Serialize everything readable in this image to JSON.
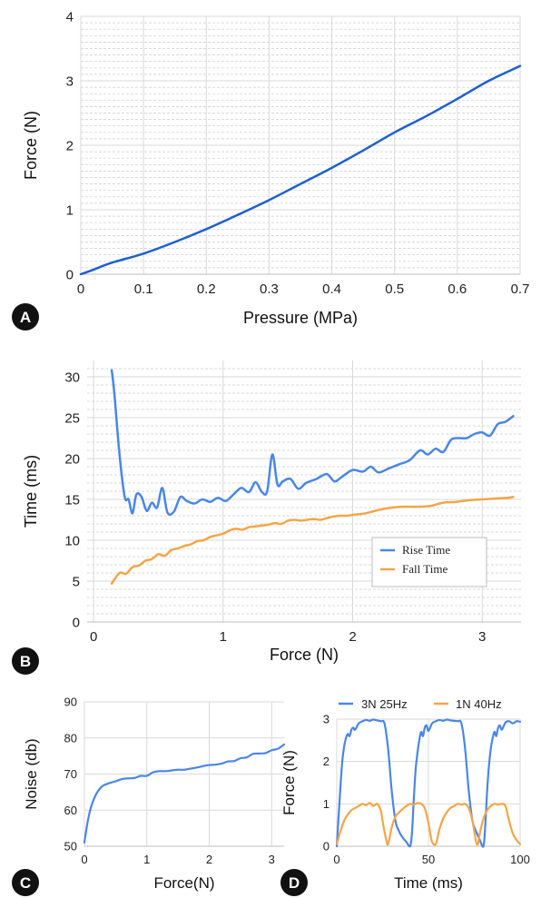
{
  "colors": {
    "panel_a_line": "#1f5fcf",
    "blue": "#4a86e8",
    "orange": "#f4a548",
    "grid_major": "#d9d9d9",
    "grid_minor": "#cccccc",
    "badge": "#111111"
  },
  "chart_data": [
    {
      "id": "A",
      "type": "line",
      "panel_label": "A",
      "xlabel": "Pressure (MPa)",
      "ylabel": "Force (N)",
      "xlim": [
        0,
        0.7
      ],
      "ylim": [
        0,
        4
      ],
      "x_ticks": [
        "0",
        "0.1",
        "0.2",
        "0.3",
        "0.4",
        "0.5",
        "0.6",
        "0.7"
      ],
      "y_ticks": [
        "0",
        "1",
        "2",
        "3",
        "4"
      ],
      "grid": true,
      "series": [
        {
          "x": [
            0,
            0.02,
            0.05,
            0.1,
            0.15,
            0.2,
            0.25,
            0.3,
            0.35,
            0.4,
            0.45,
            0.5,
            0.55,
            0.6,
            0.65,
            0.7
          ],
          "y": [
            0,
            0.07,
            0.18,
            0.32,
            0.5,
            0.7,
            0.92,
            1.15,
            1.4,
            1.65,
            1.92,
            2.2,
            2.45,
            2.72,
            3.0,
            3.23
          ]
        }
      ]
    },
    {
      "id": "B",
      "type": "line",
      "panel_label": "B",
      "xlabel": "Force (N)",
      "ylabel": "Time (ms)",
      "xlim": [
        -0.05,
        3.3
      ],
      "ylim": [
        0,
        32
      ],
      "x_ticks": [
        "0",
        "1",
        "2",
        "3"
      ],
      "y_ticks": [
        "0",
        "5",
        "10",
        "15",
        "20",
        "25",
        "30"
      ],
      "grid": true,
      "legend_position": "center-right",
      "series": [
        {
          "name": "Rise Time",
          "x": [
            0.14,
            0.16,
            0.2,
            0.24,
            0.27,
            0.3,
            0.33,
            0.37,
            0.41,
            0.45,
            0.49,
            0.53,
            0.57,
            0.62,
            0.67,
            0.72,
            0.78,
            0.84,
            0.9,
            0.96,
            1.02,
            1.08,
            1.14,
            1.2,
            1.25,
            1.3,
            1.34,
            1.38,
            1.42,
            1.46,
            1.52,
            1.58,
            1.64,
            1.72,
            1.8,
            1.86,
            1.92,
            2.0,
            2.08,
            2.14,
            2.2,
            2.28,
            2.36,
            2.44,
            2.52,
            2.58,
            2.64,
            2.7,
            2.76,
            2.82,
            2.88,
            2.94,
            3.0,
            3.06,
            3.12,
            3.18,
            3.24
          ],
          "y": [
            30.8,
            28.0,
            20.5,
            15.3,
            15.0,
            13.3,
            15.6,
            15.3,
            13.6,
            14.6,
            14.0,
            16.4,
            13.4,
            13.5,
            15.3,
            14.8,
            14.5,
            15.0,
            14.7,
            15.2,
            14.8,
            15.6,
            16.4,
            15.9,
            17.1,
            15.9,
            16.0,
            20.5,
            16.8,
            17.2,
            17.5,
            16.3,
            17.0,
            17.5,
            18.1,
            17.2,
            17.8,
            18.6,
            18.4,
            19.0,
            18.3,
            18.8,
            19.3,
            19.8,
            21.0,
            20.5,
            21.2,
            20.8,
            22.3,
            22.5,
            22.5,
            23.0,
            23.2,
            22.8,
            24.2,
            24.5,
            25.2
          ]
        },
        {
          "name": "Fall Time",
          "x": [
            0.14,
            0.2,
            0.25,
            0.3,
            0.35,
            0.4,
            0.45,
            0.5,
            0.55,
            0.6,
            0.65,
            0.7,
            0.75,
            0.8,
            0.85,
            0.9,
            0.95,
            1.0,
            1.05,
            1.1,
            1.15,
            1.2,
            1.25,
            1.3,
            1.35,
            1.4,
            1.45,
            1.5,
            1.55,
            1.6,
            1.65,
            1.7,
            1.75,
            1.8,
            1.85,
            1.9,
            1.95,
            2.0,
            2.1,
            2.2,
            2.3,
            2.4,
            2.5,
            2.6,
            2.7,
            2.8,
            2.9,
            3.0,
            3.1,
            3.2,
            3.24
          ],
          "y": [
            4.7,
            6.0,
            5.9,
            6.7,
            6.9,
            7.5,
            7.7,
            8.3,
            8.1,
            8.8,
            9.0,
            9.3,
            9.5,
            9.9,
            10.0,
            10.4,
            10.6,
            10.8,
            11.2,
            11.4,
            11.3,
            11.6,
            11.7,
            11.8,
            11.9,
            12.1,
            12.0,
            12.4,
            12.5,
            12.4,
            12.5,
            12.6,
            12.5,
            12.7,
            12.9,
            13.0,
            13.0,
            13.1,
            13.3,
            13.7,
            14.0,
            14.1,
            14.1,
            14.2,
            14.6,
            14.7,
            14.9,
            15.0,
            15.1,
            15.2,
            15.3
          ]
        }
      ]
    },
    {
      "id": "C",
      "type": "line",
      "panel_label": "C",
      "xlabel": "Force(N)",
      "ylabel": "Noise (db)",
      "xlim": [
        0,
        3.2
      ],
      "ylim": [
        50,
        90
      ],
      "x_ticks": [
        "0",
        "1",
        "2",
        "3"
      ],
      "y_ticks": [
        "50",
        "60",
        "70",
        "80",
        "90"
      ],
      "grid": true,
      "series": [
        {
          "x": [
            0.0,
            0.03,
            0.06,
            0.1,
            0.15,
            0.2,
            0.25,
            0.3,
            0.4,
            0.5,
            0.6,
            0.7,
            0.8,
            0.9,
            1.0,
            1.1,
            1.2,
            1.3,
            1.4,
            1.5,
            1.6,
            1.7,
            1.8,
            1.9,
            2.0,
            2.1,
            2.2,
            2.3,
            2.4,
            2.5,
            2.6,
            2.7,
            2.8,
            2.9,
            3.0,
            3.1,
            3.2
          ],
          "y": [
            51.0,
            54.5,
            57.5,
            60.5,
            63.0,
            64.8,
            66.0,
            66.8,
            67.5,
            68.0,
            68.6,
            68.8,
            68.9,
            69.5,
            69.5,
            70.5,
            70.8,
            70.8,
            71.0,
            71.2,
            71.2,
            71.5,
            71.8,
            72.2,
            72.5,
            72.6,
            72.9,
            73.5,
            73.6,
            74.4,
            74.6,
            75.6,
            75.7,
            75.8,
            76.6,
            77.0,
            78.2
          ]
        }
      ]
    },
    {
      "id": "D",
      "type": "line",
      "panel_label": "D",
      "xlabel": "Time (ms)",
      "ylabel": "Force (N)",
      "xlim": [
        0,
        100
      ],
      "ylim": [
        0,
        3
      ],
      "x_ticks": [
        "0",
        "50",
        "100"
      ],
      "y_ticks": [
        "0",
        "1",
        "2",
        "3"
      ],
      "grid": true,
      "legend_position": "top",
      "series": [
        {
          "name": "3N 25Hz",
          "x": [
            0,
            1,
            2,
            3,
            4,
            5,
            6,
            7,
            8,
            9,
            10,
            12,
            14,
            16,
            18,
            20,
            22,
            24,
            26,
            28,
            30,
            32,
            34,
            36,
            38,
            40,
            41,
            42,
            43,
            44,
            45,
            46,
            47,
            48,
            49,
            50,
            52,
            54,
            56,
            58,
            60,
            62,
            64,
            66,
            68,
            70,
            72,
            74,
            76,
            78,
            80,
            81,
            82,
            83,
            84,
            85,
            86,
            87,
            88,
            89,
            90,
            92,
            94,
            96,
            98,
            100
          ],
          "y": [
            0.0,
            0.7,
            1.4,
            2.0,
            2.35,
            2.55,
            2.65,
            2.6,
            2.75,
            2.8,
            2.75,
            2.9,
            2.95,
            2.98,
            2.96,
            2.99,
            2.97,
            2.95,
            2.9,
            2.3,
            1.3,
            0.6,
            0.35,
            0.2,
            0.1,
            0.0,
            0.3,
            1.1,
            1.8,
            2.2,
            2.5,
            2.7,
            2.6,
            2.8,
            2.85,
            2.72,
            2.9,
            2.95,
            2.98,
            2.96,
            2.99,
            2.97,
            2.96,
            2.95,
            2.9,
            2.3,
            1.3,
            0.6,
            0.35,
            0.15,
            0.0,
            0.5,
            1.3,
            1.9,
            2.3,
            2.55,
            2.7,
            2.6,
            2.8,
            2.85,
            2.75,
            2.92,
            2.95,
            2.9,
            2.95,
            2.94
          ]
        },
        {
          "name": "1N 40Hz",
          "x": [
            0,
            2,
            4,
            6,
            8,
            10,
            12,
            14,
            16,
            18,
            20,
            22,
            24,
            25,
            26,
            27,
            28,
            30,
            32,
            34,
            36,
            38,
            40,
            42,
            44,
            46,
            48,
            50,
            51,
            52,
            54,
            56,
            58,
            60,
            62,
            64,
            66,
            68,
            70,
            72,
            74,
            75,
            76,
            77,
            78,
            80,
            82,
            84,
            86,
            88,
            90,
            92,
            94,
            96,
            98,
            100
          ],
          "y": [
            0.05,
            0.35,
            0.6,
            0.75,
            0.85,
            0.9,
            0.95,
            1.0,
            0.97,
            1.02,
            0.95,
            1.0,
            0.85,
            0.6,
            0.35,
            0.15,
            0.05,
            0.45,
            0.7,
            0.8,
            0.88,
            0.95,
            1.0,
            0.98,
            1.02,
            1.0,
            0.9,
            0.55,
            0.3,
            0.1,
            0.05,
            0.4,
            0.65,
            0.8,
            0.9,
            0.95,
            1.0,
            0.98,
            1.0,
            0.9,
            0.6,
            0.35,
            0.1,
            0.05,
            0.3,
            0.65,
            0.85,
            0.95,
            1.0,
            0.98,
            1.0,
            0.95,
            0.6,
            0.3,
            0.15,
            0.05
          ]
        }
      ]
    }
  ]
}
